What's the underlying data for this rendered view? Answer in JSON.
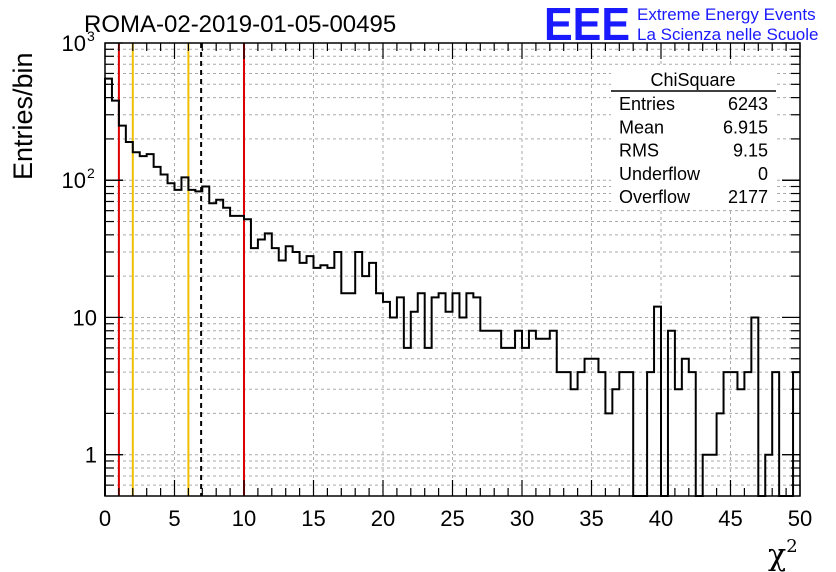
{
  "chart_data": {
    "type": "histogram",
    "title": "ROMA-02-2019-01-05-00495",
    "xlabel": "χ",
    "xlabel_sup": "2",
    "ylabel": "Entries/bin",
    "xlim": [
      0,
      50
    ],
    "ylim": [
      0.5,
      1000
    ],
    "y_scale": "log",
    "grid": true,
    "bin_width": 0.5,
    "x_ticks": [
      "0",
      "5",
      "10",
      "15",
      "20",
      "25",
      "30",
      "35",
      "40",
      "45",
      "50"
    ],
    "y_ticks": [
      {
        "value": 1,
        "label": "1"
      },
      {
        "value": 10,
        "label": "10"
      },
      {
        "value": 100,
        "label": "10",
        "sup": "2"
      },
      {
        "value": 1000,
        "label": "10",
        "sup": "3"
      }
    ],
    "values": [
      550,
      380,
      250,
      190,
      160,
      150,
      155,
      125,
      110,
      95,
      85,
      105,
      85,
      83,
      90,
      68,
      72,
      63,
      55,
      55,
      52,
      32,
      37,
      41,
      32,
      26,
      33,
      30,
      25,
      28,
      23,
      24,
      23,
      30,
      15,
      15,
      30,
      20,
      25,
      15,
      13,
      10,
      14,
      6,
      11,
      15,
      6,
      14,
      15,
      11,
      15,
      10,
      15,
      14,
      8,
      8,
      8,
      6,
      6,
      8,
      6,
      8,
      7,
      7,
      8,
      4,
      4,
      3,
      4,
      5,
      5,
      4,
      2,
      3,
      4,
      4,
      0.4,
      0.4,
      4,
      12,
      0.4,
      8,
      3,
      5,
      4,
      0.4,
      1,
      1,
      2,
      4,
      4,
      3,
      4,
      10,
      0.4,
      1,
      4,
      0.4,
      0.4,
      4
    ],
    "vertical_lines": [
      {
        "x": 1,
        "color": "#dd0000",
        "style": "solid"
      },
      {
        "x": 2,
        "color": "#f0c000",
        "style": "solid"
      },
      {
        "x": 6,
        "color": "#f0c000",
        "style": "solid"
      },
      {
        "x": 6.915,
        "color": "#000000",
        "style": "dashed"
      },
      {
        "x": 10,
        "color": "#dd0000",
        "style": "solid"
      }
    ],
    "stats_box": {
      "title": "ChiSquare",
      "rows": [
        {
          "label": "Entries",
          "value": "6243"
        },
        {
          "label": "Mean",
          "value": "6.915"
        },
        {
          "label": "RMS",
          "value": "9.15"
        },
        {
          "label": "Underflow",
          "value": "0"
        },
        {
          "label": "Overflow",
          "value": "2177"
        }
      ]
    }
  },
  "logo": {
    "text": "EEE",
    "line1": "Extreme Energy Events",
    "line2": "La Scienza nelle Scuole",
    "color": "#1a1aff"
  }
}
